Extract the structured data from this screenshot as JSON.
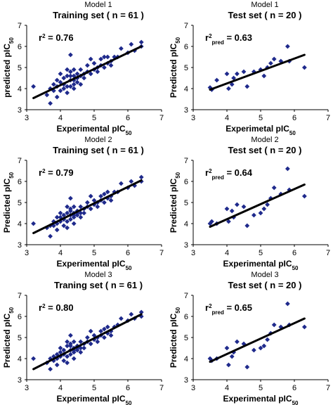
{
  "chart_data": [
    {
      "type": "scatter",
      "model_label": "Model 1",
      "title": "Training set ( n = 61 )",
      "xlabel": "Experimental pIC50",
      "ylabel": "predicted pIC50",
      "stat_label": "r2 = 0.76",
      "xlim": [
        3,
        7
      ],
      "ylim": [
        3,
        7
      ],
      "xticks": [
        3,
        4,
        5,
        6,
        7
      ],
      "yticks": [
        3,
        4,
        5,
        6,
        7
      ],
      "fit_line": {
        "x": [
          3.2,
          6.4
        ],
        "y": [
          3.55,
          6.0
        ]
      },
      "series": [
        {
          "x": [
            3.2,
            3.6,
            3.7,
            3.7,
            3.8,
            3.8,
            3.9,
            3.9,
            3.9,
            4.0,
            4.0,
            4.0,
            4.1,
            4.1,
            4.1,
            4.2,
            4.2,
            4.2,
            4.2,
            4.3,
            4.3,
            4.3,
            4.3,
            4.3,
            4.4,
            4.4,
            4.4,
            4.4,
            4.4,
            4.5,
            4.5,
            4.5,
            4.6,
            4.6,
            4.6,
            4.7,
            4.7,
            4.8,
            4.8,
            4.9,
            4.9,
            5.0,
            5.0,
            5.1,
            5.1,
            5.2,
            5.2,
            5.3,
            5.3,
            5.4,
            5.4,
            5.5,
            5.5,
            5.6,
            5.7,
            5.8,
            6.0,
            6.1,
            6.2,
            6.4,
            6.4
          ],
          "y": [
            4.1,
            3.7,
            4.0,
            3.3,
            4.2,
            3.9,
            4.4,
            3.6,
            4.1,
            3.9,
            4.3,
            4.7,
            4.0,
            4.5,
            4.2,
            4.6,
            4.1,
            3.8,
            4.9,
            4.4,
            4.6,
            4.1,
            5.6,
            4.8,
            4.2,
            4.6,
            4.4,
            4.0,
            4.9,
            4.3,
            4.7,
            4.5,
            4.6,
            4.2,
            4.9,
            4.7,
            4.5,
            4.8,
            5.1,
            4.7,
            5.4,
            4.9,
            5.2,
            5.0,
            4.8,
            5.4,
            5.1,
            5.5,
            5.0,
            5.2,
            5.5,
            5.3,
            5.1,
            5.5,
            5.5,
            5.9,
            5.7,
            6.1,
            5.8,
            6.0,
            6.2
          ]
        }
      ]
    },
    {
      "type": "scatter",
      "model_label": "Model 1",
      "title": "Test set ( n = 20 )",
      "xlabel": "Experimetal pIC50",
      "ylabel": "Predicted pIC50",
      "stat_label": "r2pred = 0.63",
      "xlim": [
        3,
        7
      ],
      "ylim": [
        3,
        7
      ],
      "xticks": [
        3,
        4,
        5,
        6,
        7
      ],
      "yticks": [
        3,
        4,
        5,
        6,
        7
      ],
      "fit_line": {
        "x": [
          3.5,
          6.3
        ],
        "y": [
          3.95,
          5.6
        ]
      },
      "series": [
        {
          "x": [
            3.5,
            3.55,
            3.7,
            4.0,
            4.05,
            4.15,
            4.2,
            4.3,
            4.5,
            4.6,
            4.8,
            5.0,
            5.1,
            5.2,
            5.3,
            5.4,
            5.6,
            5.8,
            5.85,
            6.3
          ],
          "y": [
            4.05,
            3.95,
            4.4,
            4.7,
            4.0,
            4.2,
            4.5,
            4.7,
            4.8,
            4.1,
            4.8,
            4.9,
            4.6,
            5.0,
            5.2,
            5.4,
            5.3,
            6.0,
            5.3,
            5.0
          ]
        }
      ]
    },
    {
      "type": "scatter",
      "model_label": "Model 2",
      "title": "Training set ( n = 61 )",
      "xlabel": "Experimental pIC50",
      "ylabel": "Predicted pIC50",
      "stat_label": "r2 = 0.79",
      "xlim": [
        3,
        7
      ],
      "ylim": [
        3,
        7
      ],
      "xticks": [
        3,
        4,
        5,
        6,
        7
      ],
      "yticks": [
        3,
        4,
        5,
        6,
        7
      ],
      "fit_line": {
        "x": [
          3.2,
          6.4
        ],
        "y": [
          3.55,
          6.05
        ]
      },
      "series": [
        {
          "x": [
            3.2,
            3.6,
            3.7,
            3.7,
            3.8,
            3.8,
            3.9,
            3.9,
            3.9,
            4.0,
            4.0,
            4.0,
            4.1,
            4.1,
            4.1,
            4.2,
            4.2,
            4.2,
            4.2,
            4.3,
            4.3,
            4.3,
            4.3,
            4.3,
            4.4,
            4.4,
            4.4,
            4.4,
            4.4,
            4.5,
            4.5,
            4.5,
            4.6,
            4.6,
            4.6,
            4.7,
            4.7,
            4.8,
            4.8,
            4.9,
            4.9,
            5.0,
            5.0,
            5.1,
            5.1,
            5.2,
            5.2,
            5.3,
            5.3,
            5.4,
            5.4,
            5.5,
            5.5,
            5.6,
            5.7,
            5.8,
            6.0,
            6.1,
            6.2,
            6.4,
            6.4
          ],
          "y": [
            4.0,
            3.8,
            3.9,
            3.4,
            4.1,
            3.9,
            4.3,
            3.7,
            4.0,
            4.1,
            4.3,
            4.5,
            3.9,
            4.4,
            4.2,
            4.5,
            4.1,
            3.8,
            4.8,
            4.4,
            4.6,
            4.2,
            5.2,
            4.7,
            4.3,
            4.5,
            4.4,
            4.0,
            4.8,
            4.4,
            4.6,
            4.5,
            4.5,
            4.3,
            4.8,
            4.7,
            4.5,
            4.8,
            5.0,
            4.7,
            5.3,
            4.9,
            5.1,
            5.0,
            4.8,
            5.3,
            5.1,
            5.4,
            5.0,
            5.2,
            5.5,
            5.3,
            5.1,
            5.5,
            5.5,
            5.9,
            5.7,
            6.0,
            5.8,
            6.0,
            6.2
          ]
        }
      ]
    },
    {
      "type": "scatter",
      "model_label": "Model 2",
      "title": "Test set ( n = 20 )",
      "xlabel": "Experimental pIC50",
      "ylabel": "Predicted pIC50",
      "stat_label": "r2pred = 0.64",
      "xlim": [
        3,
        7
      ],
      "ylim": [
        3,
        7
      ],
      "xticks": [
        3,
        4,
        5,
        6,
        7
      ],
      "yticks": [
        3,
        4,
        5,
        6,
        7
      ],
      "fit_line": {
        "x": [
          3.5,
          6.3
        ],
        "y": [
          3.85,
          5.85
        ]
      },
      "series": [
        {
          "x": [
            3.5,
            3.55,
            3.7,
            4.0,
            4.05,
            4.15,
            4.2,
            4.3,
            4.5,
            4.6,
            4.8,
            5.0,
            5.1,
            5.2,
            5.3,
            5.4,
            5.6,
            5.8,
            5.85,
            6.3
          ],
          "y": [
            4.0,
            4.1,
            4.0,
            4.7,
            4.1,
            4.6,
            4.3,
            4.9,
            4.8,
            3.9,
            4.4,
            4.5,
            4.7,
            4.9,
            5.2,
            5.7,
            5.4,
            6.6,
            5.6,
            5.3
          ]
        }
      ]
    },
    {
      "type": "scatter",
      "model_label": "Model 3",
      "title": "Traning set ( n = 61 )",
      "xlabel": "Experimental pIC50",
      "ylabel": "Predicted pIC50",
      "stat_label": "r2 = 0.80",
      "xlim": [
        3,
        7
      ],
      "ylim": [
        3,
        7
      ],
      "xticks": [
        3,
        4,
        5,
        6,
        7
      ],
      "yticks": [
        3,
        4,
        5,
        6,
        7
      ],
      "fit_line": {
        "x": [
          3.2,
          6.4
        ],
        "y": [
          3.5,
          6.1
        ]
      },
      "series": [
        {
          "x": [
            3.2,
            3.6,
            3.7,
            3.7,
            3.8,
            3.8,
            3.9,
            3.9,
            3.9,
            4.0,
            4.0,
            4.0,
            4.1,
            4.1,
            4.1,
            4.2,
            4.2,
            4.2,
            4.2,
            4.3,
            4.3,
            4.3,
            4.3,
            4.3,
            4.4,
            4.4,
            4.4,
            4.4,
            4.4,
            4.5,
            4.5,
            4.5,
            4.6,
            4.6,
            4.6,
            4.7,
            4.7,
            4.8,
            4.8,
            4.9,
            4.9,
            5.0,
            5.0,
            5.1,
            5.1,
            5.2,
            5.2,
            5.3,
            5.3,
            5.4,
            5.4,
            5.5,
            5.5,
            5.6,
            5.7,
            5.8,
            6.0,
            6.1,
            6.2,
            6.4,
            6.4
          ],
          "y": [
            4.0,
            3.8,
            4.0,
            3.5,
            4.1,
            3.9,
            4.2,
            3.7,
            4.0,
            4.1,
            4.3,
            4.5,
            3.9,
            4.4,
            4.2,
            4.6,
            4.1,
            3.8,
            4.8,
            4.4,
            4.6,
            4.2,
            5.1,
            4.7,
            4.3,
            4.5,
            4.4,
            4.0,
            4.8,
            4.4,
            4.6,
            4.5,
            4.5,
            4.3,
            4.8,
            4.7,
            4.5,
            4.8,
            5.0,
            4.7,
            5.3,
            4.9,
            5.1,
            5.0,
            4.8,
            5.3,
            5.1,
            5.4,
            5.0,
            5.2,
            5.5,
            5.3,
            5.1,
            5.5,
            5.6,
            5.9,
            5.8,
            6.1,
            5.9,
            6.0,
            6.2
          ]
        }
      ]
    },
    {
      "type": "scatter",
      "model_label": "Model 3",
      "title": "Test set ( n = 20 )",
      "xlabel": "Experimental pIC50",
      "ylabel": "Predicted pIC50",
      "stat_label": "r2pred = 0.65",
      "xlim": [
        3,
        7
      ],
      "ylim": [
        3,
        7
      ],
      "xticks": [
        3,
        4,
        5,
        6,
        7
      ],
      "yticks": [
        3,
        4,
        5,
        6,
        7
      ],
      "fit_line": {
        "x": [
          3.5,
          6.3
        ],
        "y": [
          3.85,
          5.9
        ]
      },
      "series": [
        {
          "x": [
            3.5,
            3.55,
            3.7,
            4.0,
            4.05,
            4.15,
            4.2,
            4.3,
            4.5,
            4.6,
            4.8,
            5.0,
            5.1,
            5.2,
            5.3,
            5.4,
            5.6,
            5.8,
            5.85,
            6.3
          ],
          "y": [
            4.0,
            3.9,
            4.0,
            4.5,
            3.7,
            4.1,
            4.3,
            4.8,
            4.7,
            3.6,
            4.4,
            4.5,
            4.6,
            4.9,
            5.2,
            5.6,
            5.5,
            6.6,
            5.6,
            5.5
          ]
        }
      ]
    }
  ]
}
